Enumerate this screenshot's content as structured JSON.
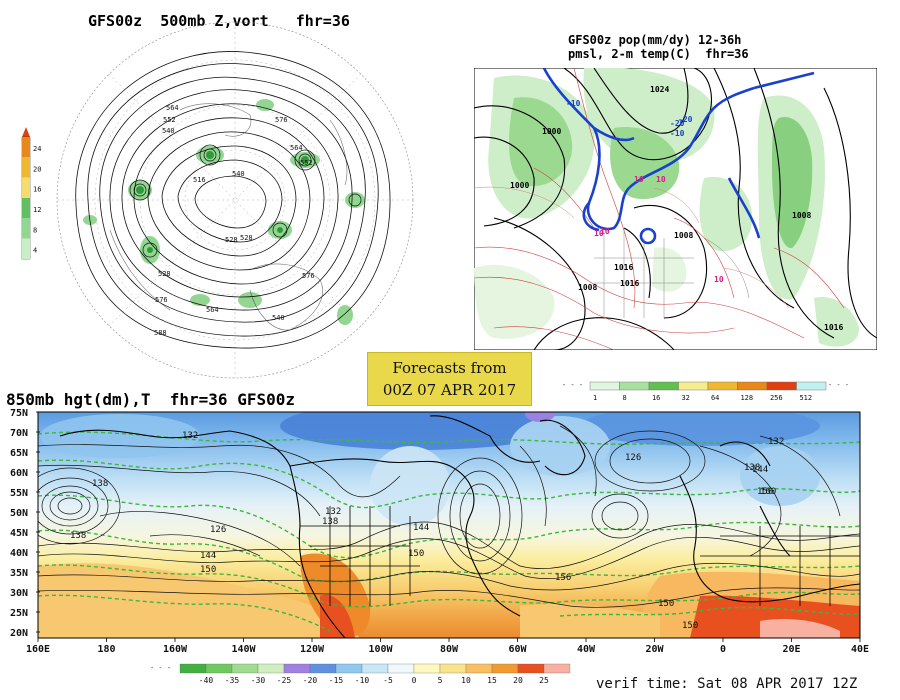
{
  "panels": {
    "z500": {
      "title": "GFS00z  500mb Z,vort   fhr=36",
      "colorbar_labels": [
        "24",
        "20",
        "16",
        "12",
        "8",
        "4"
      ],
      "colorbar_colors": [
        "#e8881a",
        "#f0b830",
        "#f5dc70",
        "#60c060",
        "#90d890",
        "#c8eec8"
      ],
      "contour_labels": [
        "564",
        "552",
        "540",
        "516",
        "528",
        "576",
        "564",
        "552",
        "540",
        "528",
        "576",
        "564",
        "540",
        "528",
        "576",
        "588"
      ]
    },
    "pop": {
      "title_line1": "GFS00z pop(mm/dy) 12-36h",
      "title_line2": "pmsl, 2-m temp(C)  fhr=36",
      "legend_labels": [
        "1",
        "8",
        "16",
        "32",
        "64",
        "128",
        "256",
        "512"
      ],
      "legend_colors": [
        "#e0f5e0",
        "#a8e0a0",
        "#60c050",
        "#f5ec90",
        "#f0b830",
        "#e8881a",
        "#e04010",
        "#c0f0f0"
      ],
      "pressure_labels": [
        "1000",
        "1008",
        "1016",
        "1024",
        "1008",
        "1016",
        "1000",
        "1008",
        "1016"
      ],
      "temp_labels": [
        "10",
        "-10",
        "-20",
        "10",
        "10",
        "10",
        "-10",
        "10",
        "-20"
      ]
    },
    "h850": {
      "title": "850mb hgt(dm),T  fhr=36 GFS00z",
      "lat_labels": [
        "75N",
        "70N",
        "65N",
        "60N",
        "55N",
        "50N",
        "45N",
        "40N",
        "35N",
        "30N",
        "25N",
        "20N"
      ],
      "lon_labels": [
        "160E",
        "180",
        "160W",
        "140W",
        "120W",
        "100W",
        "80W",
        "60W",
        "40W",
        "20W",
        "0",
        "20E",
        "40E"
      ],
      "height_labels": [
        "132",
        "138",
        "126",
        "138",
        "144",
        "150",
        "132",
        "138",
        "144",
        "150",
        "156",
        "126",
        "132",
        "138",
        "144",
        "150",
        "160",
        "150",
        "150"
      ],
      "temp_legend_labels": [
        "-40",
        "-35",
        "-30",
        "-25",
        "-20",
        "-15",
        "-10",
        "-5",
        "0",
        "5",
        "10",
        "15",
        "20",
        "25"
      ],
      "temp_legend_colors": [
        "#40b040",
        "#70c860",
        "#a0dc90",
        "#d0eec0",
        "#a080e0",
        "#6090e0",
        "#90c8f0",
        "#c8e8f8",
        "#f0f8fc",
        "#fff8c0",
        "#f8e48c",
        "#f8c060",
        "#f09a30",
        "#e85020",
        "#f8b0a0"
      ]
    }
  },
  "forecast_box": {
    "line1": "Forecasts from",
    "line2": "00Z 07 APR 2017"
  },
  "verif_time": "verif time: Sat 08 APR 2017 12Z"
}
